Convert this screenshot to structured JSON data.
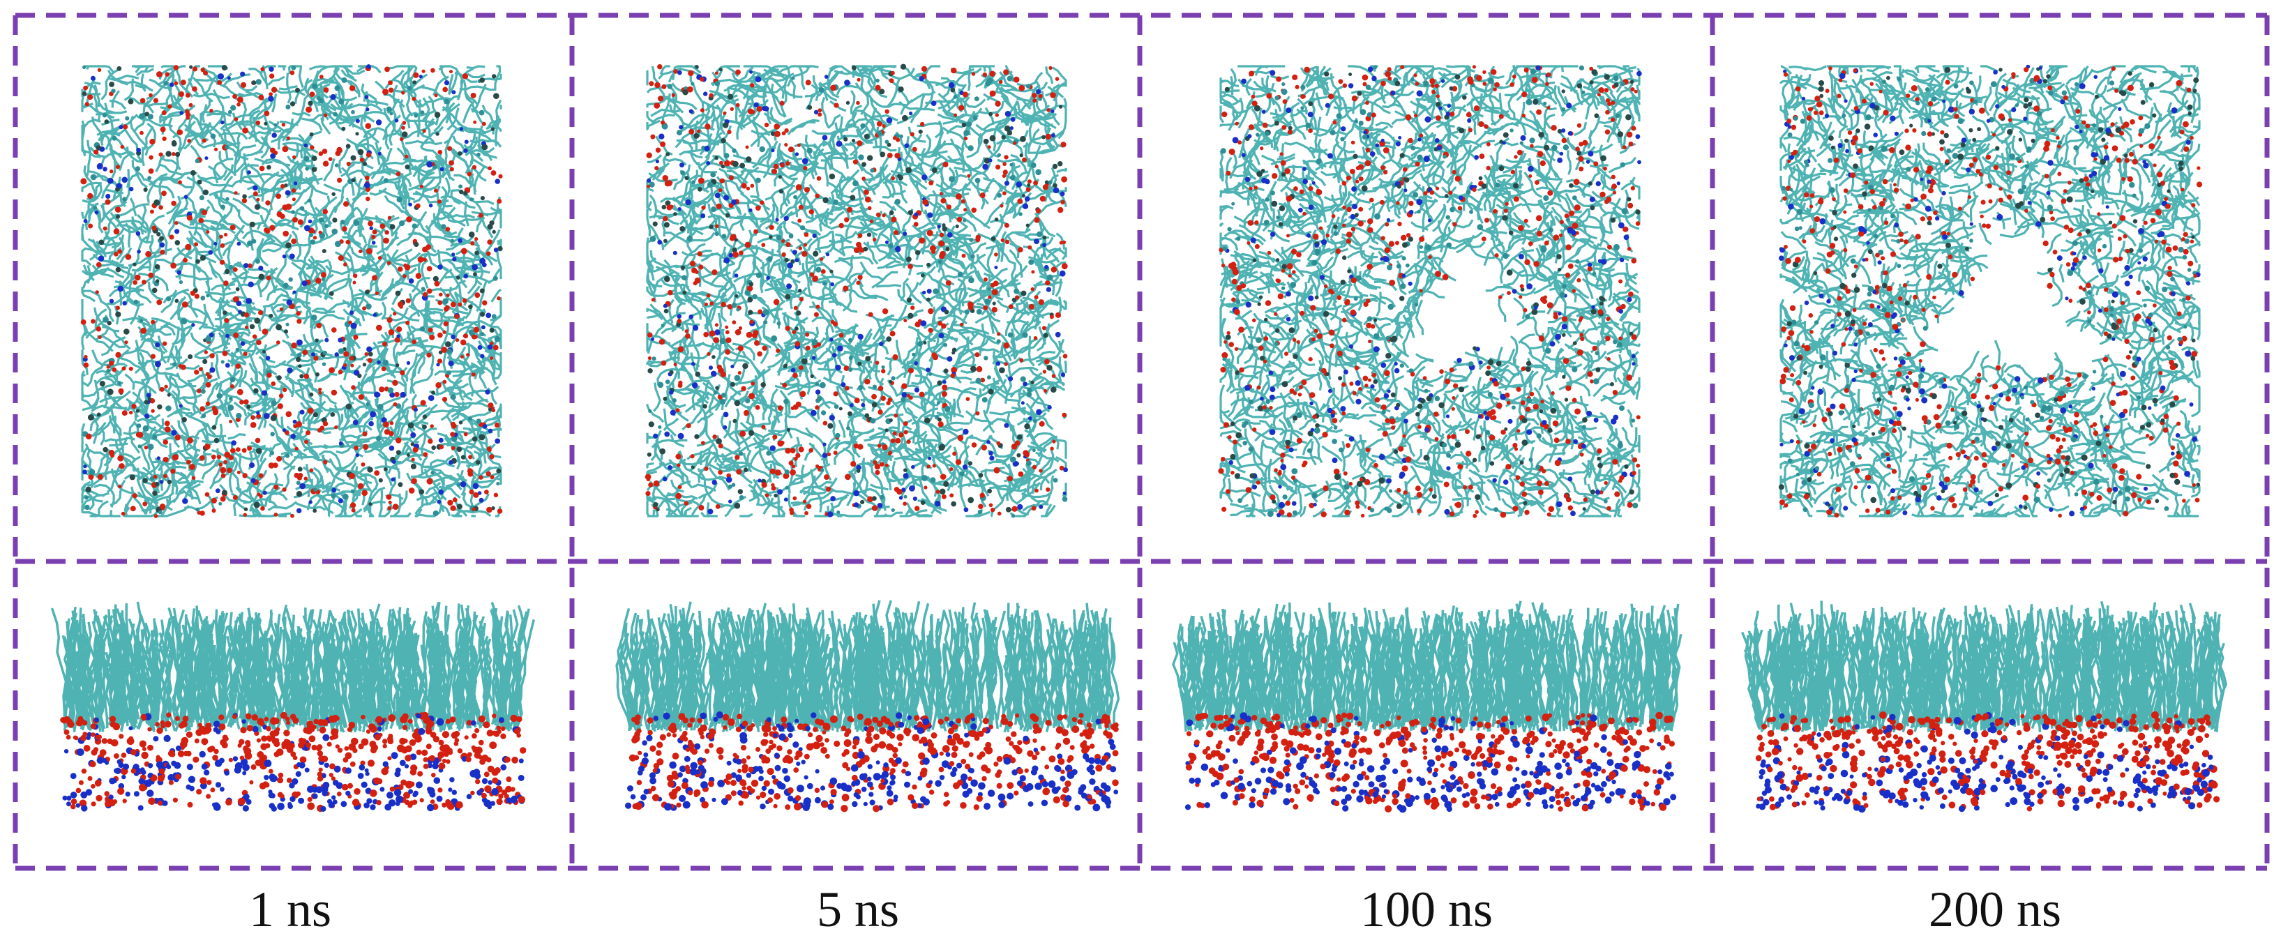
{
  "figure": {
    "colors": {
      "frame": "#7a3fb0",
      "lipid_tail": "#4fb3b3",
      "lipid_tail_dark": "#2f8f96",
      "oxygen": "#d42010",
      "nitrogen": "#1830c8",
      "carbon_dark": "#2a4a4a"
    },
    "time_labels": [
      "1 ns",
      "5 ns",
      "100 ns",
      "200 ns"
    ],
    "panels_top": [
      {
        "time": "1 ns",
        "view": "top",
        "pore": 0
      },
      {
        "time": "5 ns",
        "view": "top",
        "pore": 0.35
      },
      {
        "time": "100 ns",
        "view": "top",
        "pore": 0.7
      },
      {
        "time": "200 ns",
        "view": "top",
        "pore": 1.0
      }
    ],
    "panels_side": [
      {
        "time": "1 ns",
        "view": "side"
      },
      {
        "time": "5 ns",
        "view": "side"
      },
      {
        "time": "100 ns",
        "view": "side"
      },
      {
        "time": "200 ns",
        "view": "side"
      }
    ]
  }
}
